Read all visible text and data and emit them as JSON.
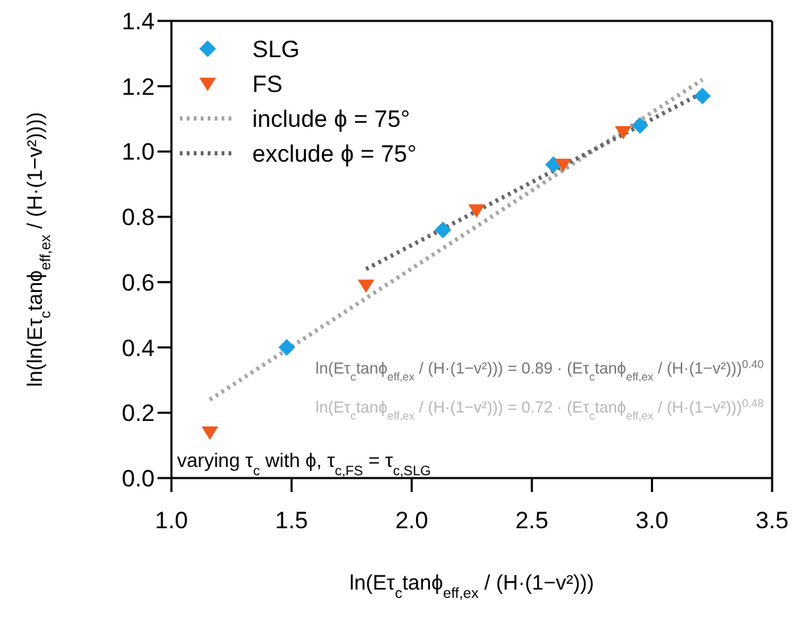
{
  "chart_data": {
    "type": "scatter",
    "xlabel": "ln(Eτ$_{c}$tanϕ$_{eff,ex}$ / (H·(1−v²)))",
    "ylabel": "ln(ln(Eτ$_{c}$tanϕ$_{eff,ex}$ / (H·(1−v²))))",
    "xlim": [
      1.0,
      3.5
    ],
    "xticks": [
      {
        "value": 1.0,
        "label": "1.0"
      },
      {
        "value": 1.5,
        "label": "1.5"
      },
      {
        "value": 2.0,
        "label": "2.0"
      },
      {
        "value": 2.5,
        "label": "2.5"
      },
      {
        "value": 3.0,
        "label": "3.0"
      },
      {
        "value": 3.5,
        "label": "3.5"
      }
    ],
    "ylim": [
      0.0,
      1.4
    ],
    "yticks": [
      {
        "value": 0.0,
        "label": "0.0"
      },
      {
        "value": 0.2,
        "label": "0.2"
      },
      {
        "value": 0.4,
        "label": "0.4"
      },
      {
        "value": 0.6,
        "label": "0.6"
      },
      {
        "value": 0.8,
        "label": "0.8"
      },
      {
        "value": 1.0,
        "label": "1.0"
      },
      {
        "value": 1.2,
        "label": "1.2"
      },
      {
        "value": 1.4,
        "label": "1.4"
      }
    ],
    "legend": "top left",
    "series": [
      {
        "name": "SLG",
        "marker": "diamond",
        "color": "#1ba1e2",
        "x": [
          1.48,
          2.13,
          2.59,
          2.95,
          3.21
        ],
        "values": [
          0.4,
          0.76,
          0.96,
          1.08,
          1.17
        ]
      },
      {
        "name": "FS",
        "marker": "triangle",
        "color": "#f05a1e",
        "x": [
          1.16,
          1.81,
          2.27,
          2.63,
          2.88
        ],
        "values": [
          0.14,
          0.59,
          0.82,
          0.96,
          1.06
        ]
      },
      {
        "name": "include ϕ = 75°",
        "type": "line",
        "marker": "none",
        "line_style": "dotted",
        "color": "#a6a6a6",
        "x": [
          1.16,
          3.21
        ],
        "values": [
          0.24,
          1.22
        ]
      },
      {
        "name": "exclude ϕ = 75°",
        "type": "line",
        "marker": "none",
        "line_style": "dotted",
        "color": "#666666",
        "x": [
          1.81,
          3.21
        ],
        "values": [
          0.64,
          1.18
        ]
      }
    ],
    "annotations": [
      "ln(Eτ$_{c}$tanϕ$_{eff,ex}$ / (H·(1−v²))) = 0.89 · (Eτ$_{c}$tanϕ$_{eff,ex}$ / (H·(1−v²)))$^{0.40}$",
      "ln(Eτ$_{c}$tanϕ$_{eff,ex}$ / (H·(1−v²))) = 0.72 · (Eτ$_{c}$tanϕ$_{eff,ex}$ / (H·(1−v²)))$^{0.48}$",
      "varying τ$_{c}$ with ϕ, τ$_{c,FS}$ = τ$_{c,SLG}$"
    ]
  }
}
